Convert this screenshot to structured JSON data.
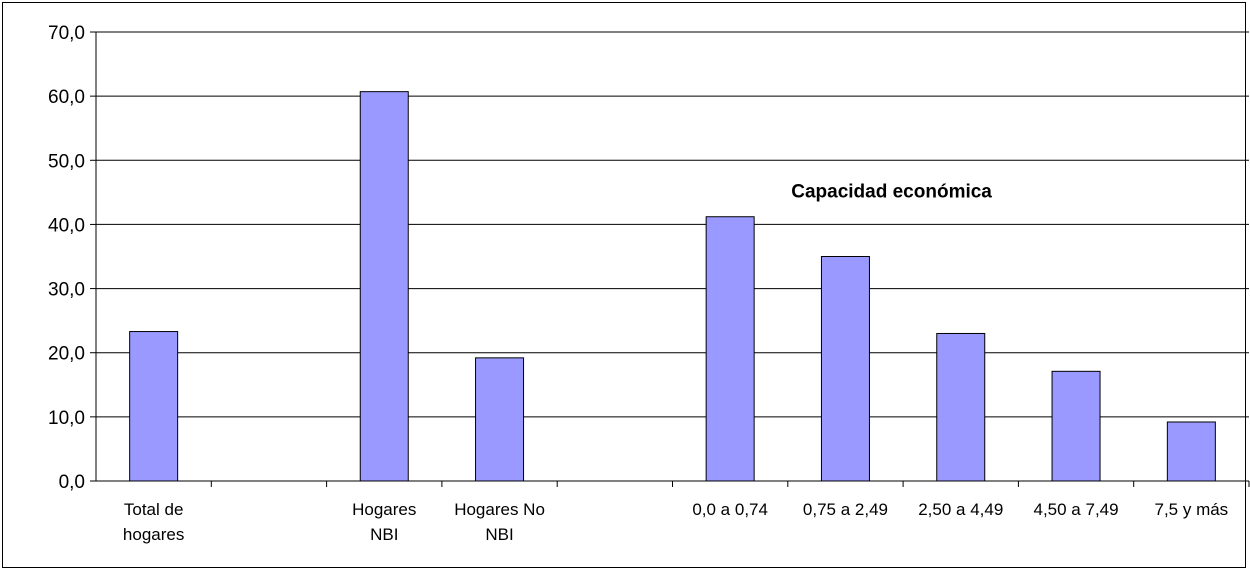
{
  "chart_data": {
    "type": "bar",
    "categories": [
      [
        "Total de",
        "hogares"
      ],
      [
        ""
      ],
      [
        "Hogares",
        "NBI"
      ],
      [
        "Hogares No",
        "NBI"
      ],
      [
        ""
      ],
      [
        "0,0 a 0,74"
      ],
      [
        "0,75 a 2,49"
      ],
      [
        "2,50 a 4,49"
      ],
      [
        "4,50 a 7,49"
      ],
      [
        "7,5 y más"
      ]
    ],
    "values": [
      23.3,
      null,
      60.7,
      19.2,
      null,
      41.2,
      35.0,
      23.0,
      17.1,
      9.2
    ],
    "ylim": [
      0,
      70
    ],
    "yticks": [
      "0,0",
      "10,0",
      "20,0",
      "30,0",
      "40,0",
      "50,0",
      "60,0",
      "70,0"
    ],
    "annotation": "Capacidad económica",
    "grid": true,
    "colors": {
      "bar_fill": "#9999ff",
      "bar_stroke": "#000000",
      "grid": "#000000"
    }
  }
}
